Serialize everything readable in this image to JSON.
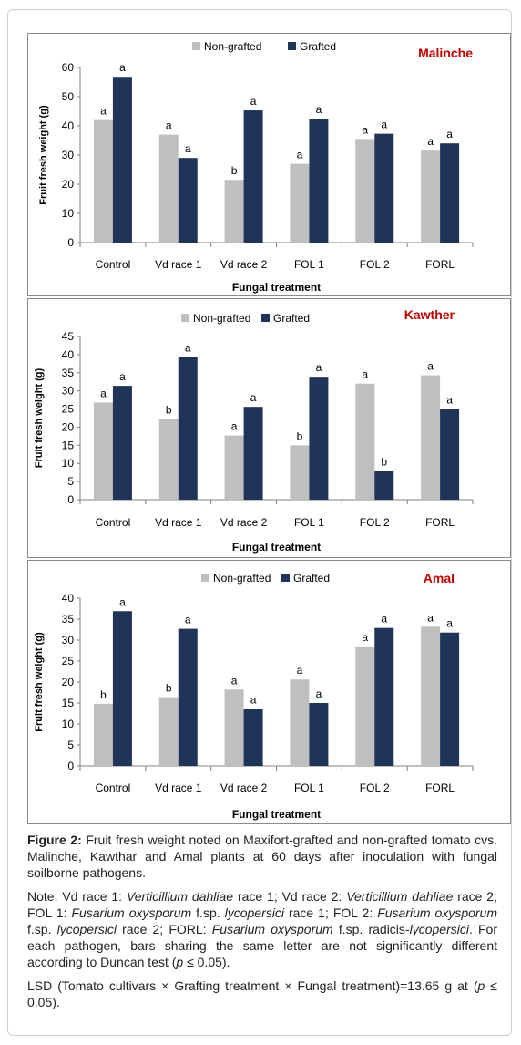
{
  "colors": {
    "non_grafted": "#bfbfbf",
    "grafted": "#1f3458",
    "title": "#c00000",
    "axis": "#7f7f7f"
  },
  "chart_data": [
    {
      "type": "bar",
      "title": "Malinche",
      "xlabel": "Fungal treatment",
      "ylabel": "Fruit fresh weight (g)",
      "ylim": [
        0,
        60
      ],
      "yticks": [
        0,
        10,
        20,
        30,
        40,
        50,
        60
      ],
      "grid": false,
      "legend": "top",
      "categories": [
        "Control",
        "Vd race 1",
        "Vd race 2",
        "FOL 1",
        "FOL 2",
        "FORL"
      ],
      "series": [
        {
          "name": "Non-grafted",
          "values": [
            42,
            37,
            21.5,
            27,
            35.5,
            31.5
          ],
          "letters": [
            "a",
            "a",
            "b",
            "a",
            "a",
            "a"
          ]
        },
        {
          "name": "Grafted",
          "values": [
            56.8,
            29,
            45.3,
            42.5,
            37.3,
            34
          ],
          "letters": [
            "a",
            "a",
            "a",
            "a",
            "a",
            "a"
          ]
        }
      ]
    },
    {
      "type": "bar",
      "title": "Kawther",
      "xlabel": "Fungal treatment",
      "ylabel": "Fruit fresh weight (g)",
      "ylim": [
        0,
        45
      ],
      "yticks": [
        0,
        5,
        10,
        15,
        20,
        25,
        30,
        35,
        40,
        45
      ],
      "grid": false,
      "legend": "top",
      "categories": [
        "Control",
        "Vd race 1",
        "Vd race 2",
        "FOL 1",
        "FOL 2",
        "FORL"
      ],
      "series": [
        {
          "name": "Non-grafted",
          "values": [
            26.8,
            22.2,
            17.7,
            15,
            32,
            34.3
          ],
          "letters": [
            "a",
            "b",
            "a",
            "b",
            "a",
            "a"
          ]
        },
        {
          "name": "Grafted",
          "values": [
            31.4,
            39.3,
            25.6,
            33.9,
            7.9,
            25
          ],
          "letters": [
            "a",
            "a",
            "a",
            "a",
            "b",
            "a"
          ]
        }
      ]
    },
    {
      "type": "bar",
      "title": "Amal",
      "xlabel": "Fungal treatment",
      "ylabel": "Fruit fresh weight (g)",
      "ylim": [
        0,
        40
      ],
      "yticks": [
        0,
        5,
        10,
        15,
        20,
        25,
        30,
        35,
        40
      ],
      "grid": false,
      "legend": "top",
      "categories": [
        "Control",
        "Vd race 1",
        "Vd race 2",
        "FOL 1",
        "FOL 2",
        "FORL"
      ],
      "series": [
        {
          "name": "Non-grafted",
          "values": [
            14.8,
            16.4,
            18.2,
            20.6,
            28.5,
            33.2
          ],
          "letters": [
            "b",
            "b",
            "a",
            "a",
            "a",
            "a"
          ]
        },
        {
          "name": "Grafted",
          "values": [
            36.9,
            32.7,
            13.6,
            15,
            32.9,
            31.8
          ],
          "letters": [
            "a",
            "a",
            "a",
            "a",
            "a",
            "a"
          ]
        }
      ]
    }
  ],
  "caption": {
    "label": "Figure 2:",
    "text": "Fruit fresh weight noted on Maxifort-grafted and non-grafted tomato cvs. Malinche, Kawthar and Amal plants at 60 days after inoculation with fungal soilborne pathogens.",
    "note_parts": [
      {
        "t": "Note: Vd race 1: ",
        "i": false
      },
      {
        "t": "Verticillium dahliae",
        "i": true
      },
      {
        "t": " race 1; Vd race 2: ",
        "i": false
      },
      {
        "t": "Verticillium dahliae",
        "i": true
      },
      {
        "t": " race 2; FOL 1: ",
        "i": false
      },
      {
        "t": "Fusarium oxysporum",
        "i": true
      },
      {
        "t": " f.sp. ",
        "i": false
      },
      {
        "t": "lycopersici",
        "i": true
      },
      {
        "t": " race 1; FOL 2: ",
        "i": false
      },
      {
        "t": "Fusarium oxysporum",
        "i": true
      },
      {
        "t": " f.sp. ",
        "i": false
      },
      {
        "t": "lycopersici",
        "i": true
      },
      {
        "t": " race 2; FORL: ",
        "i": false
      },
      {
        "t": "Fusarium oxysporum",
        "i": true
      },
      {
        "t": " f.sp. radicis-",
        "i": false
      },
      {
        "t": "lycopersici",
        "i": true
      },
      {
        "t": ". For each pathogen, bars sharing the same letter are not significantly different according to Duncan test (",
        "i": false
      },
      {
        "t": "p",
        "i": true
      },
      {
        "t": " ≤ 0.05).",
        "i": false
      }
    ],
    "lsd_parts": [
      {
        "t": "LSD (Tomato cultivars × Grafting treatment × Fungal treatment)=13.65 g at (",
        "i": false
      },
      {
        "t": "p",
        "i": true
      },
      {
        "t": " ≤ 0.05).",
        "i": false
      }
    ]
  }
}
